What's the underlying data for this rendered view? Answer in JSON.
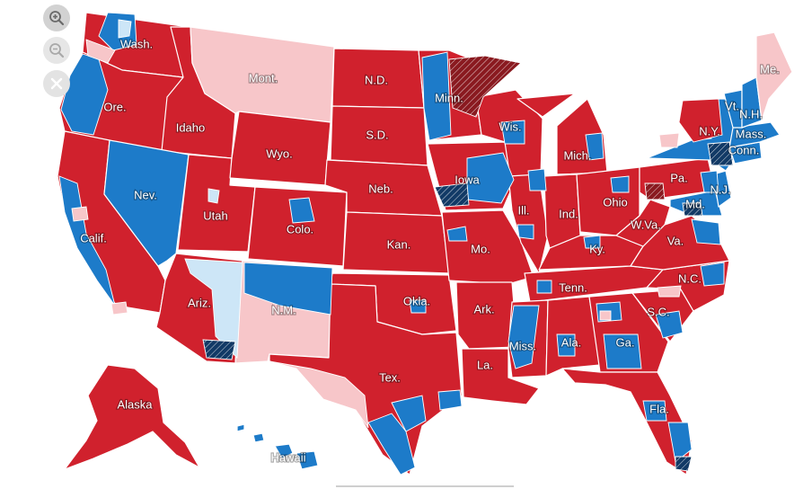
{
  "colors": {
    "solid_red": "#d0212d",
    "solid_blue": "#1d7bc9",
    "light_red": "#f7c6c9",
    "light_blue": "#cde6f7",
    "dark_red": "#8a1a20",
    "dark_blue": "#123a66",
    "background": "#ffffff"
  },
  "controls": {
    "zoom_in": "zoom-in-icon",
    "zoom_out": "zoom-out-icon",
    "close": "close-icon"
  },
  "states": [
    {
      "label": "Wash.",
      "fill": "solid_red"
    },
    {
      "label": "Ore.",
      "fill": "solid_red"
    },
    {
      "label": "Calif.",
      "fill": "solid_red"
    },
    {
      "label": "Idaho",
      "fill": "solid_red"
    },
    {
      "label": "Nev.",
      "fill": "solid_blue"
    },
    {
      "label": "Utah",
      "fill": "solid_red"
    },
    {
      "label": "Ariz.",
      "fill": "solid_red"
    },
    {
      "label": "Mont.",
      "fill": "light_red"
    },
    {
      "label": "Wyo.",
      "fill": "solid_red"
    },
    {
      "label": "Colo.",
      "fill": "solid_red"
    },
    {
      "label": "N.M.",
      "fill": "light_red"
    },
    {
      "label": "N.D.",
      "fill": "solid_red"
    },
    {
      "label": "S.D.",
      "fill": "solid_red"
    },
    {
      "label": "Neb.",
      "fill": "solid_red"
    },
    {
      "label": "Kan.",
      "fill": "solid_red"
    },
    {
      "label": "Okla.",
      "fill": "solid_red"
    },
    {
      "label": "Tex.",
      "fill": "solid_red"
    },
    {
      "label": "Minn.",
      "fill": "solid_red"
    },
    {
      "label": "Iowa",
      "fill": "solid_red"
    },
    {
      "label": "Mo.",
      "fill": "solid_red"
    },
    {
      "label": "Ark.",
      "fill": "solid_red"
    },
    {
      "label": "La.",
      "fill": "solid_red"
    },
    {
      "label": "Wis.",
      "fill": "solid_red"
    },
    {
      "label": "Ill.",
      "fill": "solid_red"
    },
    {
      "label": "Mich.",
      "fill": "solid_red"
    },
    {
      "label": "Ind.",
      "fill": "solid_red"
    },
    {
      "label": "Ohio",
      "fill": "solid_red"
    },
    {
      "label": "Ky.",
      "fill": "solid_red"
    },
    {
      "label": "Tenn.",
      "fill": "solid_red"
    },
    {
      "label": "Miss.",
      "fill": "solid_red"
    },
    {
      "label": "Ala.",
      "fill": "solid_red"
    },
    {
      "label": "Ga.",
      "fill": "solid_red"
    },
    {
      "label": "Fla.",
      "fill": "solid_red"
    },
    {
      "label": "S.C.",
      "fill": "solid_red"
    },
    {
      "label": "N.C.",
      "fill": "solid_red"
    },
    {
      "label": "Va.",
      "fill": "solid_red"
    },
    {
      "label": "W.Va.",
      "fill": "solid_red"
    },
    {
      "label": "Pa.",
      "fill": "solid_red"
    },
    {
      "label": "Md.",
      "fill": "solid_blue"
    },
    {
      "label": "N.J.",
      "fill": "solid_blue"
    },
    {
      "label": "N.Y.",
      "fill": "solid_blue"
    },
    {
      "label": "Conn.",
      "fill": "solid_blue"
    },
    {
      "label": "Mass.",
      "fill": "solid_blue"
    },
    {
      "label": "Vt.",
      "fill": "solid_blue"
    },
    {
      "label": "N.H.",
      "fill": "solid_blue"
    },
    {
      "label": "Me.",
      "fill": "light_red"
    },
    {
      "label": "Alaska",
      "fill": "solid_red"
    },
    {
      "label": "Hawaii",
      "fill": "solid_blue"
    }
  ]
}
